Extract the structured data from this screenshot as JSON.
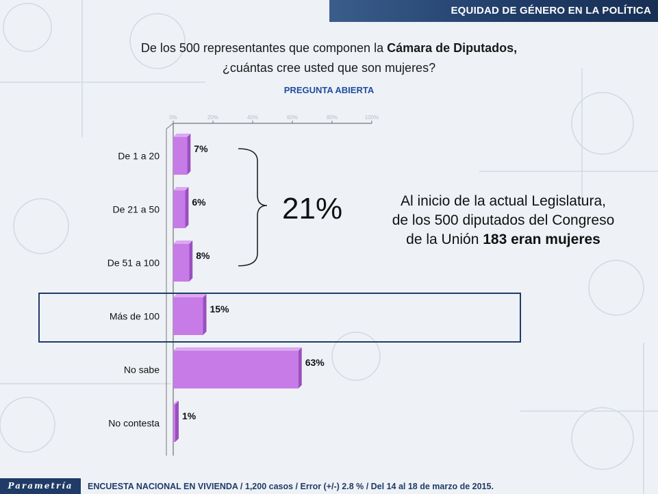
{
  "header": {
    "banner": "EQUIDAD DE GÉNERO EN LA POLÍTICA"
  },
  "question": {
    "line1_prefix": "De los 500 representantes que componen la ",
    "line1_bold": "Cámara de Diputados,",
    "line2": "¿cuántas cree usted que son mujeres?"
  },
  "subtitle": "PREGUNTA ABIERTA",
  "chart_data": {
    "type": "bar",
    "orientation": "horizontal",
    "categories": [
      "De 1 a 20",
      "De 21 a 50",
      "De 51 a 100",
      "Más de 100",
      "No sabe",
      "No contesta"
    ],
    "values": [
      7,
      6,
      8,
      15,
      63,
      1
    ],
    "value_labels": [
      "7%",
      "6%",
      "8%",
      "15%",
      "63%",
      "1%"
    ],
    "x_ticks": [
      "0%",
      "20%",
      "40%",
      "60%",
      "80%",
      "100%"
    ],
    "xlim": [
      0,
      100
    ],
    "bar_color": "#c77be6",
    "bar_side_color": "#9a4fc0",
    "legend": "none",
    "grid": false
  },
  "annotations": {
    "brace_total": "21%",
    "note_line1": "Al inicio de la actual Legislatura,",
    "note_line2": "de los 500 diputados del Congreso",
    "note_line3_prefix": "de la Unión ",
    "note_line3_bold": "183 eran mujeres"
  },
  "footer": {
    "logo": "Parametría",
    "text": "ENCUESTA NACIONAL EN VIVIENDA / 1,200 casos / Error (+/-) 2.8 % / Del 14 al 18 de marzo de 2015."
  },
  "colors": {
    "brand_navy": "#1f3b66",
    "subtitle_blue": "#1f4e9c",
    "background": "#eef1f6"
  }
}
